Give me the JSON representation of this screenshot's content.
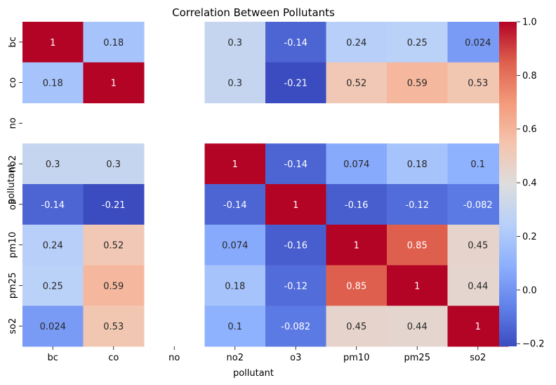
{
  "chart_data": {
    "type": "heatmap",
    "title": "Correlation Between Pollutants",
    "xlabel": "pollutant",
    "ylabel": "pollutant",
    "x_categories": [
      "bc",
      "co",
      "no",
      "no2",
      "o3",
      "pm10",
      "pm25",
      "so2"
    ],
    "y_categories": [
      "bc",
      "co",
      "no",
      "no2",
      "o3",
      "pm10",
      "pm25",
      "so2"
    ],
    "values": [
      [
        1,
        0.18,
        null,
        0.3,
        -0.14,
        0.24,
        0.25,
        0.024
      ],
      [
        0.18,
        1,
        null,
        0.3,
        -0.21,
        0.52,
        0.59,
        0.53
      ],
      [
        null,
        null,
        null,
        null,
        null,
        null,
        null,
        null
      ],
      [
        0.3,
        0.3,
        null,
        1,
        -0.14,
        0.074,
        0.18,
        0.1
      ],
      [
        -0.14,
        -0.21,
        null,
        -0.14,
        1,
        -0.16,
        -0.12,
        -0.082
      ],
      [
        0.24,
        0.52,
        null,
        0.074,
        -0.16,
        1,
        0.85,
        0.45
      ],
      [
        0.25,
        0.59,
        null,
        0.18,
        -0.12,
        0.85,
        1,
        0.44
      ],
      [
        0.024,
        0.53,
        null,
        0.1,
        -0.082,
        0.45,
        0.44,
        1
      ]
    ],
    "annotate": true,
    "colormap": "coolwarm",
    "colorbar": {
      "vmin": -0.21,
      "vmax": 1,
      "ticks": [
        -0.2,
        0.0,
        0.2,
        0.4,
        0.6,
        0.8,
        1.0
      ],
      "tick_labels": [
        "−0.2",
        "0.0",
        "0.2",
        "0.4",
        "0.6",
        "0.8",
        "1.0"
      ]
    },
    "grid": false
  }
}
